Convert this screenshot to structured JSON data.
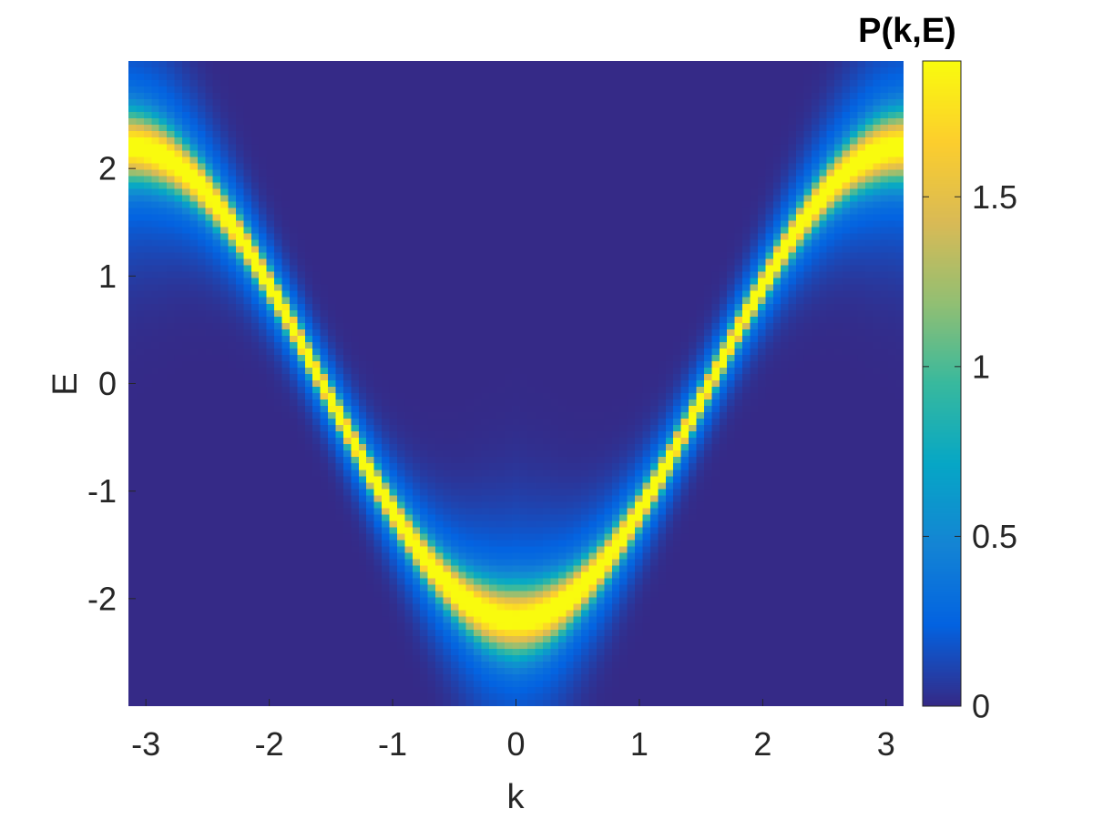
{
  "chart_data": {
    "type": "heatmap",
    "title": "",
    "xlabel": "k",
    "ylabel": "E",
    "xlim": [
      -3.1416,
      3.1416
    ],
    "ylim": [
      -3,
      3
    ],
    "xticks": [
      -3,
      -2,
      -1,
      0,
      1,
      2,
      3
    ],
    "xtick_labels": [
      "-3",
      "-2",
      "-1",
      "0",
      "1",
      "2",
      "3"
    ],
    "yticks": [
      -2,
      -1,
      0,
      1,
      2
    ],
    "ytick_labels": [
      "-2",
      "-1",
      "0",
      "1",
      "2"
    ],
    "colorbar": {
      "title": "P(k,E)",
      "limits": [
        0,
        1.9
      ],
      "ticks": [
        0,
        0.5,
        1,
        1.5
      ],
      "tick_labels": [
        "0",
        "0.5",
        "1",
        "1.5"
      ],
      "colormap": "parula",
      "colormap_stops": [
        "#352a87",
        "#0363e1",
        "#1485d4",
        "#06a7c6",
        "#38b99e",
        "#92bf73",
        "#d9ba56",
        "#fcce2e",
        "#f9fb0e"
      ]
    },
    "model": {
      "description": "spectral function peaked along band E = -2.2·cos(k), brightest near E = 0, broadened at band edges",
      "band_amplitude": 2.2,
      "k_bins": 101,
      "E_bins": 101,
      "peak_max": 1.9,
      "band_edge_peak": 1.6
    },
    "grid": false,
    "legend": "none"
  }
}
